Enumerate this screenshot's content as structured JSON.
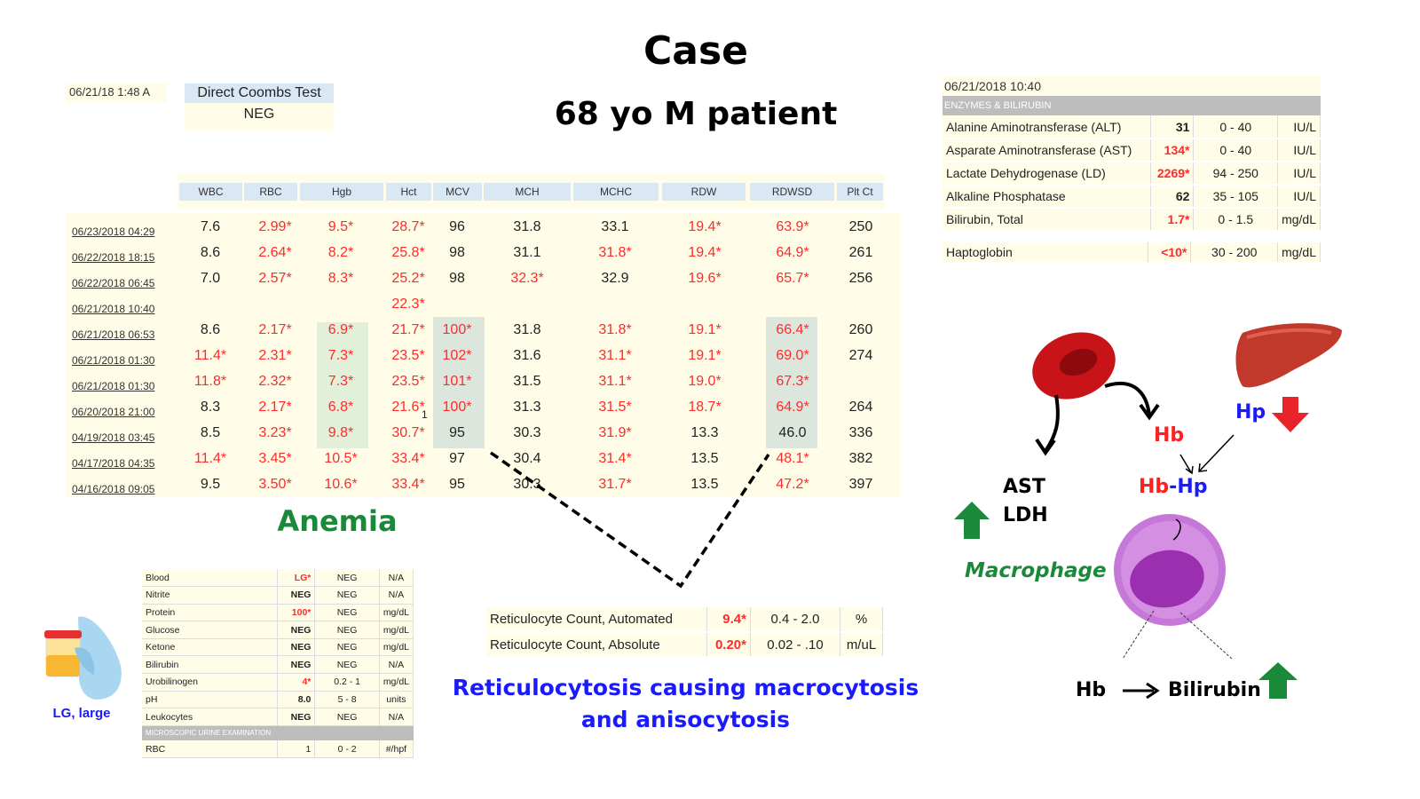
{
  "title": "Case",
  "subtitle": "68 yo M patient",
  "coombs": {
    "date": "06/21/18 1:48 A",
    "test": "Direct Coombs Test",
    "result": "NEG"
  },
  "cbc": {
    "columns": [
      "WBC",
      "RBC",
      "Hgb",
      "Hct",
      "MCV",
      "MCH",
      "MCHC",
      "RDW",
      "RDWSD",
      "Plt Ct"
    ],
    "rows": [
      {
        "date": "06/23/2018 04:29",
        "values": [
          "7.6",
          "2.99*",
          "9.5*",
          "28.7*",
          "96",
          "31.8",
          "33.1",
          "19.4*",
          "63.9*",
          "250"
        ]
      },
      {
        "date": "06/22/2018 18:15",
        "values": [
          "8.6",
          "2.64*",
          "8.2*",
          "25.8*",
          "98",
          "31.1",
          "31.8*",
          "19.4*",
          "64.9*",
          "261"
        ]
      },
      {
        "date": "06/22/2018 06:45",
        "values": [
          "7.0",
          "2.57*",
          "8.3*",
          "25.2*",
          "98",
          "32.3*",
          "32.9",
          "19.6*",
          "65.7*",
          "256"
        ]
      },
      {
        "date": "06/21/2018 10:40",
        "values": [
          "",
          "",
          "",
          "22.3*",
          "",
          "",
          "",
          "",
          "",
          ""
        ]
      },
      {
        "date": "06/21/2018 06:53",
        "values": [
          "8.6",
          "2.17*",
          "6.9*",
          "21.7*",
          "100*",
          "31.8",
          "31.8*",
          "19.1*",
          "66.4*",
          "260"
        ]
      },
      {
        "date": "06/21/2018 01:30",
        "values": [
          "11.4*",
          "2.31*",
          "7.3*",
          "23.5*",
          "102*",
          "31.6",
          "31.1*",
          "19.1*",
          "69.0*",
          "274"
        ]
      },
      {
        "date": "06/21/2018 01:30",
        "values": [
          "11.8*",
          "2.32*",
          "7.3*",
          "23.5*",
          "101*",
          "31.5",
          "31.1*",
          "19.0*",
          "67.3*",
          ""
        ]
      },
      {
        "date": "06/20/2018 21:00",
        "values": [
          "8.3",
          "2.17*",
          "6.8*",
          "21.6*",
          "100*",
          "31.3",
          "31.5*",
          "18.7*",
          "64.9*",
          "264"
        ]
      },
      {
        "date": "04/19/2018 03:45",
        "values": [
          "8.5",
          "3.23*",
          "9.8*",
          "30.7*",
          "95",
          "30.3",
          "31.9*",
          "13.3",
          "46.0",
          "336"
        ]
      },
      {
        "date": "04/17/2018 04:35",
        "values": [
          "11.4*",
          "3.45*",
          "10.5*",
          "33.4*",
          "97",
          "30.4",
          "31.4*",
          "13.5",
          "48.1*",
          "382"
        ]
      },
      {
        "date": "04/16/2018 09:05",
        "values": [
          "9.5",
          "3.50*",
          "10.6*",
          "33.4*",
          "95",
          "30.3",
          "31.7*",
          "13.5",
          "47.2*",
          "397"
        ]
      }
    ],
    "footnote": "1"
  },
  "anemia_label": "Anemia",
  "enzymes": {
    "date": "06/21/2018 10:40",
    "section": "ENZYMES & BILIRUBIN",
    "rows": [
      {
        "name": "Alanine Aminotransferase (ALT)",
        "value": "31",
        "range": "0 - 40",
        "unit": "IU/L",
        "abnormal": false
      },
      {
        "name": "Asparate Aminotransferase (AST)",
        "value": "134*",
        "range": "0 - 40",
        "unit": "IU/L",
        "abnormal": true
      },
      {
        "name": "Lactate Dehydrogenase (LD)",
        "value": "2269*",
        "range": "94 - 250",
        "unit": "IU/L",
        "abnormal": true
      },
      {
        "name": "Alkaline Phosphatase",
        "value": "62",
        "range": "35 - 105",
        "unit": "IU/L",
        "abnormal": false
      },
      {
        "name": "Bilirubin, Total",
        "value": "1.7*",
        "range": "0 - 1.5",
        "unit": "mg/dL",
        "abnormal": true
      }
    ],
    "haptoglobin": {
      "name": "Haptoglobin",
      "value": "<10*",
      "range": "30 - 200",
      "unit": "mg/dL"
    }
  },
  "urine": {
    "rows": [
      {
        "name": "Blood",
        "value": "LG*",
        "ref": "NEG",
        "unit": "N/A",
        "abnormal": true
      },
      {
        "name": "Nitrite",
        "value": "NEG",
        "ref": "NEG",
        "unit": "N/A",
        "abnormal": false
      },
      {
        "name": "Protein",
        "value": "100*",
        "ref": "NEG",
        "unit": "mg/dL",
        "abnormal": true
      },
      {
        "name": "Glucose",
        "value": "NEG",
        "ref": "NEG",
        "unit": "mg/dL",
        "abnormal": false
      },
      {
        "name": "Ketone",
        "value": "NEG",
        "ref": "NEG",
        "unit": "mg/dL",
        "abnormal": false
      },
      {
        "name": "Bilirubin",
        "value": "NEG",
        "ref": "NEG",
        "unit": "N/A",
        "abnormal": false
      },
      {
        "name": "Urobilinogen",
        "value": "4*",
        "ref": "0.2 - 1",
        "unit": "mg/dL",
        "abnormal": true
      },
      {
        "name": "pH",
        "value": "8.0",
        "ref": "5 - 8",
        "unit": "units",
        "abnormal": false
      },
      {
        "name": "Leukocytes",
        "value": "NEG",
        "ref": "NEG",
        "unit": "N/A",
        "abnormal": false
      }
    ],
    "section": "MICROSCOPIC URINE EXAMINATION",
    "micro": [
      {
        "name": "RBC",
        "value": "1",
        "ref": "0 - 2",
        "unit": "#/hpf",
        "abnormal": false
      }
    ],
    "sample_label": "LG, large"
  },
  "retic": {
    "rows": [
      {
        "name": "Reticulocyte Count, Automated",
        "value": "9.4*",
        "range": "0.4 - 2.0",
        "unit": "%"
      },
      {
        "name": "Reticulocyte Count, Absolute",
        "value": "0.20*",
        "range": "0.02 - .10",
        "unit": "m/uL"
      }
    ],
    "caption_line1": "Reticulocytosis causing macrocytosis",
    "caption_line2": "and anisocytosis"
  },
  "diagram": {
    "hb": "Hb",
    "hp": "Hp",
    "hbhp_hb": "Hb",
    "hbhp_dash": "-",
    "hbhp_hp": "Hp",
    "ast": "AST",
    "ldh": "LDH",
    "macrophage": "Macrophage",
    "hb_bottom": "Hb",
    "bilirubin": "Bilirubin"
  },
  "colors": {
    "abnormal": "#ff2a2a",
    "green": "#1a8a3a",
    "blue": "#1a1aff",
    "hdr": "#dae7f5",
    "yellow": "#fffde8"
  }
}
